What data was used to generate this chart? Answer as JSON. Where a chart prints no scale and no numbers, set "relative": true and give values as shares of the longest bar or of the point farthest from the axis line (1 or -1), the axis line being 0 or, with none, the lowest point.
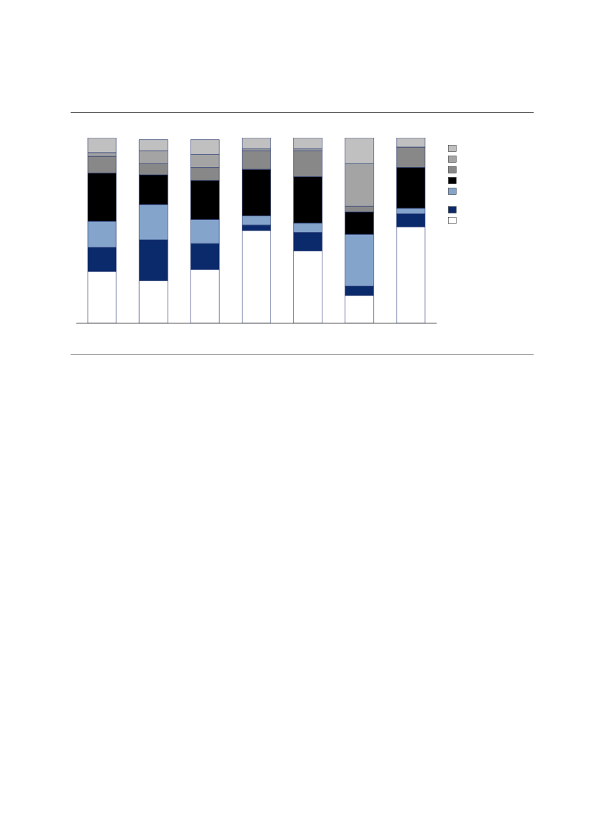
{
  "chart_data": {
    "type": "bar",
    "stacked": true,
    "relative": true,
    "categories": [
      null,
      null,
      null,
      null,
      null,
      null,
      null
    ],
    "series": [
      {
        "color": "#ffffff",
        "values": [
          0.28,
          0.23,
          0.29,
          0.5,
          0.39,
          0.15,
          0.52
        ]
      },
      {
        "color": "#0a2a6b",
        "values": [
          0.13,
          0.22,
          0.14,
          0.03,
          0.1,
          0.05,
          0.07
        ]
      },
      {
        "color": "#84a4cc",
        "values": [
          0.14,
          0.19,
          0.13,
          0.05,
          0.05,
          0.28,
          0.03
        ]
      },
      {
        "color": "#000000",
        "values": [
          0.26,
          0.16,
          0.21,
          0.25,
          0.25,
          0.12,
          0.22
        ]
      },
      {
        "color": "#888888",
        "values": [
          0.09,
          0.06,
          0.07,
          0.1,
          0.14,
          0.03,
          0.11
        ]
      },
      {
        "color": "#a4a4a4",
        "values": [
          0.02,
          0.07,
          0.07,
          0.01,
          0.01,
          0.23,
          0
        ]
      },
      {
        "color": "#c0c0c0",
        "values": [
          0.08,
          0.06,
          0.08,
          0.06,
          0.06,
          0.14,
          0.05
        ]
      }
    ]
  }
}
